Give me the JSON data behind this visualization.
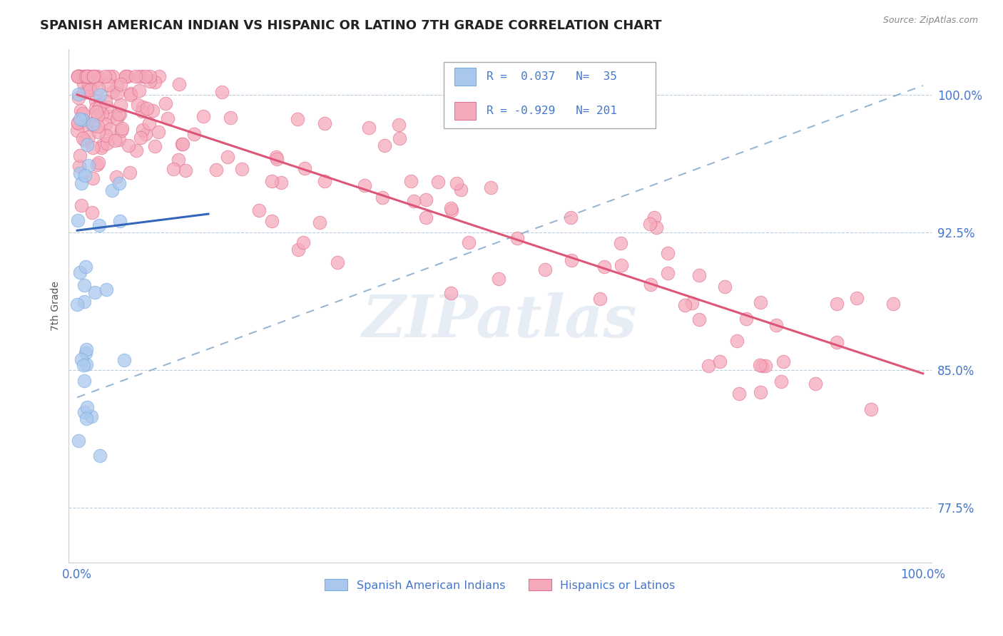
{
  "title": "SPANISH AMERICAN INDIAN VS HISPANIC OR LATINO 7TH GRADE CORRELATION CHART",
  "source": "Source: ZipAtlas.com",
  "ylabel": "7th Grade",
  "r_blue": 0.037,
  "n_blue": 35,
  "r_pink": -0.929,
  "n_pink": 201,
  "xlim": [
    -0.01,
    1.01
  ],
  "ylim": [
    0.745,
    1.025
  ],
  "yticks": [
    0.775,
    0.85,
    0.925,
    1.0
  ],
  "ytick_labels": [
    "77.5%",
    "85.0%",
    "92.5%",
    "100.0%"
  ],
  "xtick_labels": [
    "0.0%",
    "100.0%"
  ],
  "xticks": [
    0.0,
    1.0
  ],
  "blue_scatter_color": "#aac8ee",
  "blue_edge_color": "#7aabe0",
  "pink_scatter_color": "#f5aabb",
  "pink_edge_color": "#e07090",
  "blue_line_color": "#3366bb",
  "pink_line_color": "#dd5577",
  "dashed_line_color": "#88aacc",
  "tick_label_color": "#4477cc",
  "watermark_text": "ZIPatlas",
  "legend_label_blue": "Spanish American Indians",
  "legend_label_pink": "Hispanics or Latinos",
  "background_color": "#ffffff",
  "grid_color": "#bbccdd",
  "blue_line_x0": 0.0,
  "blue_line_x1": 0.155,
  "blue_line_y0": 0.926,
  "blue_line_y1": 0.935,
  "dashed_line_x0": 0.0,
  "dashed_line_x1": 1.0,
  "dashed_line_y0": 0.835,
  "dashed_line_y1": 1.005,
  "pink_line_x0": 0.0,
  "pink_line_x1": 1.0,
  "pink_line_y0": 1.0,
  "pink_line_y1": 0.848
}
